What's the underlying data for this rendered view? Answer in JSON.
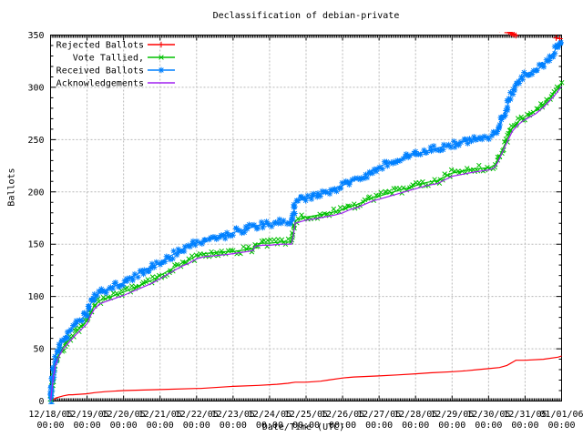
{
  "chart_data": {
    "type": "line",
    "title": "Declassification of debian-private",
    "xlabel": "Date/Time (UTC)",
    "ylabel": "Ballots",
    "ylim": [
      0,
      350
    ],
    "y_tick_step": 50,
    "y_minor_step": 10,
    "x_range_days": 14,
    "x_minor_per_day": 24,
    "grid": true,
    "legend_position": "top-left-inside",
    "x_tick_labels": [
      "12/18/05",
      "12/19/05",
      "12/20/05",
      "12/21/05",
      "12/22/05",
      "12/23/05",
      "12/24/05",
      "12/25/05",
      "12/26/05",
      "12/27/05",
      "12/28/05",
      "12/29/05",
      "12/30/05",
      "12/31/05",
      "01/01/06"
    ],
    "x_tick_time_label": "00:00",
    "y_tick_labels": [
      "0",
      "50",
      "100",
      "150",
      "200",
      "250",
      "300",
      "350"
    ],
    "colors": {
      "rejected": "#ff0000",
      "tallied": "#00c000",
      "received": "#0080ff",
      "acknowledgements": "#a020f0",
      "grid": "#b8b8b8",
      "border": "#000000",
      "background": "#ffffff",
      "text": "#000000"
    },
    "series": [
      {
        "name": "Rejected Ballots",
        "slug": "rejected-ballots",
        "color": "#ff0000",
        "marker": "plus",
        "band": false,
        "points": [
          [
            0,
            0
          ],
          [
            0.05,
            1
          ],
          [
            0.15,
            3
          ],
          [
            0.25,
            4
          ],
          [
            0.35,
            5
          ],
          [
            0.5,
            6
          ],
          [
            0.6,
            6
          ],
          [
            1.0,
            7
          ],
          [
            1.2,
            8
          ],
          [
            1.5,
            9
          ],
          [
            2.0,
            10
          ],
          [
            3.0,
            11
          ],
          [
            4.0,
            12
          ],
          [
            4.1,
            12
          ],
          [
            5.0,
            14
          ],
          [
            5.7,
            15
          ],
          [
            6.2,
            16
          ],
          [
            6.5,
            17
          ],
          [
            6.7,
            18
          ],
          [
            7.0,
            18
          ],
          [
            7.4,
            19
          ],
          [
            7.6,
            20
          ],
          [
            8.0,
            22
          ],
          [
            8.3,
            23
          ],
          [
            9.0,
            24
          ],
          [
            9.5,
            25
          ],
          [
            10.0,
            26
          ],
          [
            10.4,
            27
          ],
          [
            11.0,
            28
          ],
          [
            11.4,
            29
          ],
          [
            11.7,
            30
          ],
          [
            12.0,
            31
          ],
          [
            12.3,
            32
          ],
          [
            12.5,
            34
          ],
          [
            12.6,
            36
          ],
          [
            12.7,
            38
          ],
          [
            12.75,
            39
          ],
          [
            13.0,
            39
          ],
          [
            13.5,
            40
          ],
          [
            13.9,
            42
          ],
          [
            14.0,
            43
          ]
        ],
        "marker_days": [
          0.15,
          0.28,
          0.33,
          0.38,
          0.45,
          0.52,
          1.2,
          4.1,
          5.7,
          6.3,
          6.5,
          6.58,
          6.66,
          7.4,
          7.55,
          8.3,
          9.05,
          10.4,
          11.4,
          11.6,
          11.8,
          12.3,
          12.45,
          12.5,
          12.55,
          12.6,
          12.63,
          12.66,
          12.7,
          12.75,
          13.85,
          13.95
        ]
      },
      {
        "name": "Vote Tallied,",
        "slug": "vote-tallied",
        "color": "#00c000",
        "marker": "cross",
        "band": true,
        "points": [
          [
            0,
            0
          ],
          [
            0.04,
            14
          ],
          [
            0.08,
            26
          ],
          [
            0.15,
            38
          ],
          [
            0.25,
            46
          ],
          [
            0.35,
            52
          ],
          [
            0.5,
            58
          ],
          [
            0.65,
            64
          ],
          [
            0.8,
            70
          ],
          [
            1.0,
            77
          ],
          [
            1.1,
            85
          ],
          [
            1.2,
            91
          ],
          [
            1.35,
            96
          ],
          [
            1.5,
            98
          ],
          [
            1.75,
            101
          ],
          [
            2.0,
            104
          ],
          [
            2.2,
            107
          ],
          [
            2.4,
            110
          ],
          [
            2.6,
            113
          ],
          [
            2.8,
            116
          ],
          [
            3.0,
            120
          ],
          [
            3.2,
            124
          ],
          [
            3.4,
            128
          ],
          [
            3.6,
            132
          ],
          [
            3.8,
            135
          ],
          [
            4.0,
            139
          ],
          [
            4.2,
            141
          ],
          [
            4.5,
            142
          ],
          [
            4.8,
            143
          ],
          [
            5.0,
            143
          ],
          [
            5.2,
            144
          ],
          [
            5.4,
            145
          ],
          [
            5.55,
            146
          ],
          [
            5.6,
            150
          ],
          [
            5.8,
            151
          ],
          [
            6.0,
            151
          ],
          [
            6.3,
            152
          ],
          [
            6.6,
            152
          ],
          [
            6.65,
            160
          ],
          [
            6.7,
            172
          ],
          [
            6.8,
            174
          ],
          [
            7.0,
            176
          ],
          [
            7.2,
            177
          ],
          [
            7.5,
            179
          ],
          [
            7.8,
            181
          ],
          [
            8.0,
            183
          ],
          [
            8.2,
            186
          ],
          [
            8.4,
            188
          ],
          [
            8.6,
            191
          ],
          [
            8.8,
            194
          ],
          [
            9.0,
            196
          ],
          [
            9.2,
            198
          ],
          [
            9.5,
            201
          ],
          [
            9.8,
            204
          ],
          [
            10.0,
            206
          ],
          [
            10.3,
            209
          ],
          [
            10.6,
            211
          ],
          [
            11.0,
            218
          ],
          [
            11.3,
            220
          ],
          [
            11.6,
            222
          ],
          [
            12.0,
            223
          ],
          [
            12.15,
            225
          ],
          [
            12.25,
            230
          ],
          [
            12.35,
            238
          ],
          [
            12.5,
            250
          ],
          [
            12.65,
            261
          ],
          [
            12.8,
            267
          ],
          [
            12.95,
            271
          ],
          [
            13.1,
            274
          ],
          [
            13.3,
            278
          ],
          [
            13.5,
            284
          ],
          [
            13.7,
            291
          ],
          [
            13.85,
            297
          ],
          [
            14.0,
            304
          ]
        ]
      },
      {
        "name": "Received Ballots",
        "slug": "received-ballots",
        "color": "#0080ff",
        "marker": "star",
        "band": true,
        "points": [
          [
            0,
            0
          ],
          [
            0.04,
            18
          ],
          [
            0.08,
            32
          ],
          [
            0.15,
            44
          ],
          [
            0.25,
            52
          ],
          [
            0.35,
            58
          ],
          [
            0.5,
            66
          ],
          [
            0.65,
            72
          ],
          [
            0.8,
            77
          ],
          [
            1.0,
            84
          ],
          [
            1.1,
            93
          ],
          [
            1.2,
            99
          ],
          [
            1.35,
            104
          ],
          [
            1.5,
            106
          ],
          [
            1.75,
            110
          ],
          [
            2.0,
            113
          ],
          [
            2.2,
            118
          ],
          [
            2.4,
            122
          ],
          [
            2.6,
            126
          ],
          [
            2.8,
            129
          ],
          [
            3.0,
            132
          ],
          [
            3.2,
            137
          ],
          [
            3.4,
            141
          ],
          [
            3.6,
            145
          ],
          [
            3.8,
            148
          ],
          [
            4.0,
            151
          ],
          [
            4.2,
            153
          ],
          [
            4.5,
            156
          ],
          [
            4.8,
            158
          ],
          [
            5.0,
            161
          ],
          [
            5.2,
            163
          ],
          [
            5.4,
            165
          ],
          [
            5.6,
            167
          ],
          [
            5.8,
            169
          ],
          [
            6.0,
            170
          ],
          [
            6.3,
            171
          ],
          [
            6.6,
            171
          ],
          [
            6.65,
            178
          ],
          [
            6.7,
            190
          ],
          [
            6.8,
            192
          ],
          [
            7.0,
            193
          ],
          [
            7.2,
            196
          ],
          [
            7.4,
            198
          ],
          [
            7.6,
            200
          ],
          [
            7.8,
            203
          ],
          [
            8.0,
            206
          ],
          [
            8.2,
            210
          ],
          [
            8.4,
            212
          ],
          [
            8.6,
            215
          ],
          [
            8.8,
            220
          ],
          [
            9.0,
            224
          ],
          [
            9.2,
            227
          ],
          [
            9.5,
            230
          ],
          [
            9.8,
            234
          ],
          [
            10.0,
            236
          ],
          [
            10.3,
            239
          ],
          [
            10.6,
            242
          ],
          [
            11.0,
            245
          ],
          [
            11.3,
            248
          ],
          [
            11.6,
            251
          ],
          [
            12.0,
            253
          ],
          [
            12.15,
            255
          ],
          [
            12.25,
            260
          ],
          [
            12.35,
            268
          ],
          [
            12.5,
            281
          ],
          [
            12.65,
            295
          ],
          [
            12.8,
            305
          ],
          [
            12.95,
            311
          ],
          [
            13.1,
            314
          ],
          [
            13.3,
            316
          ],
          [
            13.5,
            321
          ],
          [
            13.7,
            329
          ],
          [
            13.85,
            337
          ],
          [
            14.0,
            345
          ]
        ]
      },
      {
        "name": "Acknowledgements",
        "slug": "acknowledgements",
        "color": "#a020f0",
        "marker": "none",
        "band": false,
        "points": [
          [
            0,
            0
          ],
          [
            0.04,
            12
          ],
          [
            0.08,
            24
          ],
          [
            0.15,
            36
          ],
          [
            0.25,
            44
          ],
          [
            0.35,
            50
          ],
          [
            0.5,
            56
          ],
          [
            0.65,
            62
          ],
          [
            0.8,
            67
          ],
          [
            1.0,
            74
          ],
          [
            1.1,
            82
          ],
          [
            1.2,
            88
          ],
          [
            1.35,
            93
          ],
          [
            1.5,
            95
          ],
          [
            1.75,
            98
          ],
          [
            2.0,
            101
          ],
          [
            2.2,
            104
          ],
          [
            2.4,
            107
          ],
          [
            2.6,
            110
          ],
          [
            2.8,
            113
          ],
          [
            3.0,
            117
          ],
          [
            3.2,
            121
          ],
          [
            3.4,
            125
          ],
          [
            3.6,
            129
          ],
          [
            3.8,
            132
          ],
          [
            4.0,
            136
          ],
          [
            4.2,
            138
          ],
          [
            4.5,
            139
          ],
          [
            4.8,
            140
          ],
          [
            5.0,
            141
          ],
          [
            5.2,
            142
          ],
          [
            5.4,
            143
          ],
          [
            5.55,
            144
          ],
          [
            5.6,
            148
          ],
          [
            5.8,
            149
          ],
          [
            6.0,
            149
          ],
          [
            6.3,
            150
          ],
          [
            6.6,
            150
          ],
          [
            6.65,
            158
          ],
          [
            6.7,
            170
          ],
          [
            6.8,
            171
          ],
          [
            7.0,
            173
          ],
          [
            7.2,
            174
          ],
          [
            7.5,
            176
          ],
          [
            7.8,
            178
          ],
          [
            8.0,
            180
          ],
          [
            8.2,
            183
          ],
          [
            8.4,
            185
          ],
          [
            8.6,
            188
          ],
          [
            8.8,
            191
          ],
          [
            9.0,
            193
          ],
          [
            9.2,
            195
          ],
          [
            9.5,
            198
          ],
          [
            9.8,
            201
          ],
          [
            10.0,
            203
          ],
          [
            10.3,
            206
          ],
          [
            10.6,
            208
          ],
          [
            11.0,
            215
          ],
          [
            11.3,
            217
          ],
          [
            11.6,
            219
          ],
          [
            12.0,
            221
          ],
          [
            12.15,
            223
          ],
          [
            12.25,
            228
          ],
          [
            12.35,
            236
          ],
          [
            12.5,
            247
          ],
          [
            12.65,
            258
          ],
          [
            12.8,
            264
          ],
          [
            12.95,
            268
          ],
          [
            13.1,
            271
          ],
          [
            13.3,
            275
          ],
          [
            13.5,
            281
          ],
          [
            13.7,
            288
          ],
          [
            13.85,
            294
          ],
          [
            14.0,
            301
          ]
        ]
      }
    ]
  }
}
